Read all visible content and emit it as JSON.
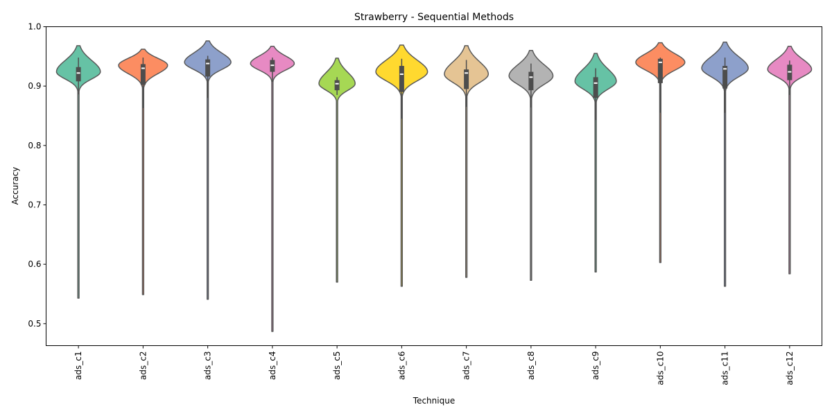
{
  "chart_data": {
    "type": "violin",
    "title": "Strawberry - Sequential Methods",
    "xlabel": "Technique",
    "ylabel": "Accuracy",
    "ylim": [
      0.463,
      1.0
    ],
    "yticks": [
      "0.5",
      "0.6",
      "0.7",
      "0.8",
      "0.9",
      "1.0"
    ],
    "ytick_values": [
      0.5,
      0.6,
      0.7,
      0.8,
      0.9,
      1.0
    ],
    "categories": [
      "ads_c1",
      "ads_c2",
      "ads_c3",
      "ads_c4",
      "ads_c5",
      "ads_c6",
      "ads_c7",
      "ads_c8",
      "ads_c9",
      "ads_c10",
      "ads_c11",
      "ads_c12"
    ],
    "grid": false,
    "legend": "none",
    "series": [
      {
        "category": "ads_c1",
        "color": "#66c2a5",
        "min": 0.543,
        "q1": 0.908,
        "median": 0.922,
        "q3": 0.932,
        "whisker_low": 0.886,
        "whisker_high": 0.948,
        "max": 0.968,
        "mode": 0.924,
        "peak": 0.85,
        "sd": 0.012
      },
      {
        "category": "ads_c2",
        "color": "#fc8d62",
        "min": 0.549,
        "q1": 0.902,
        "median": 0.93,
        "q3": 0.937,
        "whisker_low": 0.863,
        "whisker_high": 0.948,
        "max": 0.962,
        "mode": 0.935,
        "peak": 0.95,
        "sd": 0.014
      },
      {
        "category": "ads_c3",
        "color": "#8da0cb",
        "min": 0.541,
        "q1": 0.916,
        "median": 0.938,
        "q3": 0.945,
        "whisker_low": 0.88,
        "whisker_high": 0.951,
        "max": 0.976,
        "mode": 0.94,
        "peak": 0.9,
        "sd": 0.012
      },
      {
        "category": "ads_c4",
        "color": "#e78ac3",
        "min": 0.487,
        "q1": 0.924,
        "median": 0.935,
        "q3": 0.944,
        "whisker_low": 0.907,
        "whisker_high": 0.948,
        "max": 0.967,
        "mode": 0.938,
        "peak": 0.85,
        "sd": 0.011
      },
      {
        "category": "ads_c5",
        "color": "#a6d854",
        "min": 0.57,
        "q1": 0.893,
        "median": 0.904,
        "q3": 0.91,
        "whisker_low": 0.885,
        "whisker_high": 0.915,
        "max": 0.947,
        "mode": 0.904,
        "peak": 0.7,
        "sd": 0.011
      },
      {
        "category": "ads_c6",
        "color": "#ffd92f",
        "min": 0.563,
        "q1": 0.89,
        "median": 0.92,
        "q3": 0.934,
        "whisker_low": 0.845,
        "whisker_high": 0.946,
        "max": 0.969,
        "mode": 0.924,
        "peak": 1.0,
        "sd": 0.015
      },
      {
        "category": "ads_c7",
        "color": "#e5c494",
        "min": 0.578,
        "q1": 0.895,
        "median": 0.922,
        "q3": 0.928,
        "whisker_low": 0.865,
        "whisker_high": 0.944,
        "max": 0.968,
        "mode": 0.92,
        "peak": 0.85,
        "sd": 0.014
      },
      {
        "category": "ads_c8",
        "color": "#b3b3b3",
        "min": 0.573,
        "q1": 0.893,
        "median": 0.915,
        "q3": 0.924,
        "whisker_low": 0.864,
        "whisker_high": 0.938,
        "max": 0.96,
        "mode": 0.917,
        "peak": 0.85,
        "sd": 0.014
      },
      {
        "category": "ads_c9",
        "color": "#66c2a5",
        "min": 0.587,
        "q1": 0.88,
        "median": 0.905,
        "q3": 0.915,
        "whisker_low": 0.843,
        "whisker_high": 0.93,
        "max": 0.955,
        "mode": 0.908,
        "peak": 0.8,
        "sd": 0.013
      },
      {
        "category": "ads_c10",
        "color": "#fc8d62",
        "min": 0.603,
        "q1": 0.905,
        "median": 0.94,
        "q3": 0.946,
        "whisker_low": 0.855,
        "whisker_high": 0.948,
        "max": 0.973,
        "mode": 0.94,
        "peak": 0.95,
        "sd": 0.013
      },
      {
        "category": "ads_c11",
        "color": "#8da0cb",
        "min": 0.563,
        "q1": 0.896,
        "median": 0.929,
        "q3": 0.934,
        "whisker_low": 0.855,
        "whisker_high": 0.948,
        "max": 0.974,
        "mode": 0.93,
        "peak": 0.9,
        "sd": 0.014
      },
      {
        "category": "ads_c12",
        "color": "#e78ac3",
        "min": 0.584,
        "q1": 0.91,
        "median": 0.924,
        "q3": 0.936,
        "whisker_low": 0.885,
        "whisker_high": 0.943,
        "max": 0.967,
        "mode": 0.928,
        "peak": 0.85,
        "sd": 0.012
      }
    ]
  }
}
